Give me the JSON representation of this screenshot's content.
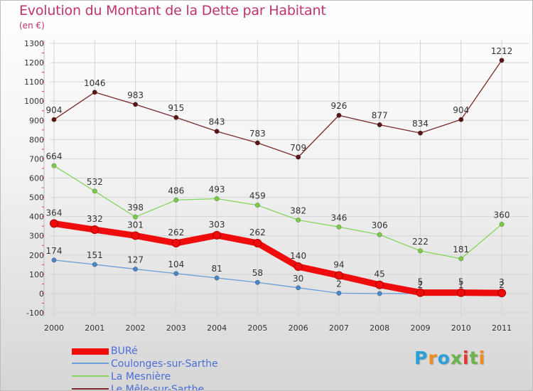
{
  "title": "Evolution du Montant de la Dette par Habitant",
  "unit": "(en €)",
  "logo": {
    "text": "Proxiti",
    "colors": [
      "#2aa0d8",
      "#f08b1e",
      "#2aa0d8",
      "#6ab44a",
      "#e8332a",
      "#6ab44a",
      "#f08b1e"
    ]
  },
  "chart_data": {
    "type": "line",
    "x": [
      2000,
      2001,
      2002,
      2003,
      2004,
      2005,
      2006,
      2007,
      2008,
      2009,
      2010,
      2011
    ],
    "ylim": [
      -100,
      1300
    ],
    "yticks": [
      -100,
      0,
      100,
      200,
      300,
      400,
      500,
      600,
      700,
      800,
      900,
      1000,
      1100,
      1200,
      1300
    ],
    "grid": true,
    "legend_position": "bottom-left",
    "series": [
      {
        "name": "Le Mêle-sur-Sarthe",
        "color": "#7a2a2a",
        "marker": "#5a1616",
        "width": "thin",
        "values": [
          904,
          1046,
          983,
          915,
          843,
          783,
          709,
          926,
          877,
          834,
          904,
          1212
        ],
        "labels": [
          "904",
          "1046",
          "983",
          "915",
          "843",
          "783",
          "709",
          "926",
          "877",
          "834",
          "904",
          "1212"
        ]
      },
      {
        "name": "La Mesnière",
        "color": "#86d45a",
        "marker": "#7acc44",
        "width": "thin",
        "values": [
          664,
          532,
          398,
          486,
          493,
          459,
          382,
          346,
          306,
          222,
          181,
          360
        ],
        "labels": [
          "664",
          "532",
          "398",
          "486",
          "493",
          "459",
          "382",
          "346",
          "306",
          "222",
          "181",
          "360"
        ]
      },
      {
        "name": "Coulonges-sur-Sarthe",
        "color": "#6a9fd8",
        "marker": "#4a86c8",
        "width": "thin",
        "values": [
          174,
          151,
          127,
          104,
          81,
          58,
          30,
          2,
          0,
          0,
          0,
          0
        ],
        "labels": [
          "174",
          "151",
          "127",
          "104",
          "81",
          "58",
          "30",
          "2",
          "",
          "",
          "",
          ""
        ]
      },
      {
        "name": "BURé",
        "color": "#ee0c0c",
        "marker": "#ee0c0c",
        "width": "thick",
        "values": [
          364,
          332,
          301,
          262,
          303,
          262,
          140,
          94,
          45,
          5,
          5,
          3
        ],
        "labels": [
          "364",
          "332",
          "301",
          "262",
          "303",
          "262",
          "140",
          "94",
          "45",
          "5",
          "5",
          "3"
        ]
      }
    ],
    "extra_labels": [
      {
        "x": 2009,
        "y": -1,
        "text": "2"
      },
      {
        "x": 2010,
        "y": -1,
        "text": "1"
      },
      {
        "x": 2011,
        "y": -1,
        "text": "2"
      }
    ]
  },
  "legend": [
    {
      "label": "BURé",
      "color": "#ee0c0c",
      "thick": true
    },
    {
      "label": "Coulonges-sur-Sarthe",
      "color": "#6a9fd8",
      "thick": false
    },
    {
      "label": "La Mesnière",
      "color": "#86d45a",
      "thick": false
    },
    {
      "label": "Le Mêle-sur-Sarthe",
      "color": "#7a2a2a",
      "thick": false
    }
  ]
}
